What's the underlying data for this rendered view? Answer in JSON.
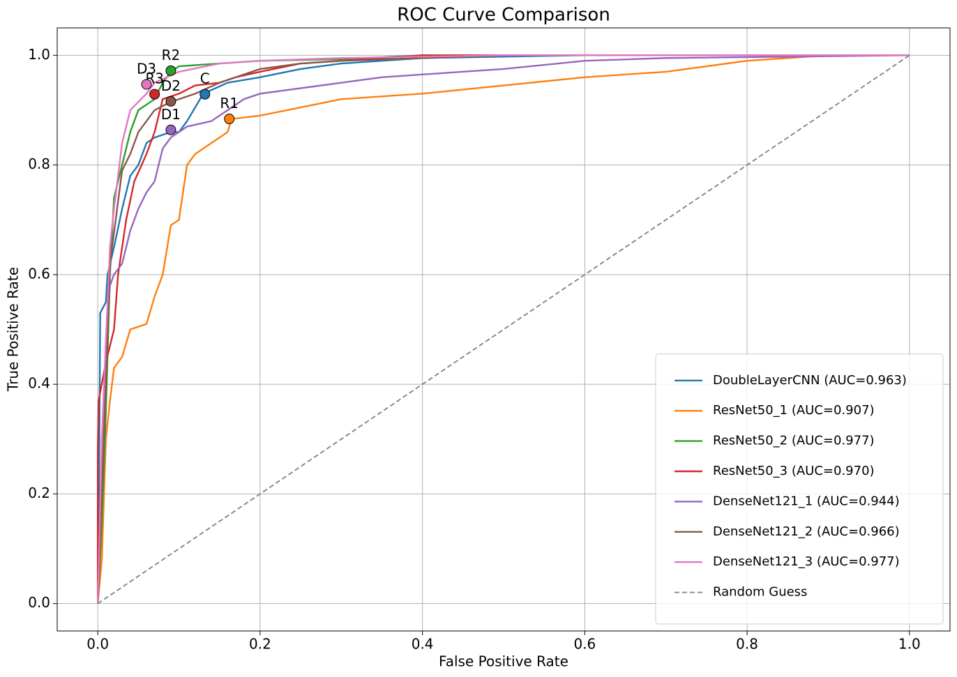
{
  "chart_data": {
    "type": "line",
    "title": "ROC Curve Comparison",
    "xlabel": "False Positive Rate",
    "ylabel": "True Positive Rate",
    "xlim": [
      -0.05,
      1.05
    ],
    "ylim": [
      -0.05,
      1.05
    ],
    "xticks": [
      {
        "value": 0,
        "label": "0.0"
      },
      0.2,
      0.4,
      0.6,
      0.8,
      {
        "value": 1,
        "label": "1.0"
      }
    ],
    "yticks": [
      {
        "value": 0,
        "label": "0.0"
      },
      0.2,
      0.4,
      0.6,
      0.8,
      {
        "value": 1,
        "label": "1.0"
      }
    ],
    "grid": true,
    "legend": "lower right",
    "series": [
      {
        "name": "DoubleLayerCNN (AUC=0.963)",
        "color": "#1f77b4",
        "x": [
          0,
          0.002,
          0.003,
          0.01,
          0.012,
          0.02,
          0.03,
          0.04,
          0.05,
          0.06,
          0.07,
          0.09,
          0.1,
          0.11,
          0.13,
          0.16,
          0.2,
          0.25,
          0.3,
          0.4,
          0.6,
          1
        ],
        "values": [
          0,
          0.3,
          0.53,
          0.55,
          0.6,
          0.65,
          0.72,
          0.78,
          0.8,
          0.84,
          0.85,
          0.86,
          0.86,
          0.88,
          0.93,
          0.95,
          0.96,
          0.975,
          0.985,
          0.995,
          1,
          1
        ]
      },
      {
        "name": "ResNet50_1 (AUC=0.907)",
        "color": "#ff7f0e",
        "x": [
          0,
          0.005,
          0.01,
          0.015,
          0.02,
          0.03,
          0.04,
          0.06,
          0.07,
          0.08,
          0.09,
          0.1,
          0.11,
          0.12,
          0.14,
          0.16,
          0.165,
          0.2,
          0.25,
          0.3,
          0.4,
          0.5,
          0.6,
          0.7,
          0.75,
          0.8,
          0.9,
          1
        ],
        "values": [
          0,
          0.08,
          0.3,
          0.37,
          0.43,
          0.45,
          0.5,
          0.51,
          0.56,
          0.6,
          0.69,
          0.7,
          0.8,
          0.82,
          0.84,
          0.86,
          0.884,
          0.89,
          0.905,
          0.92,
          0.93,
          0.945,
          0.96,
          0.97,
          0.98,
          0.99,
          1,
          1
        ]
      },
      {
        "name": "ResNet50_2 (AUC=0.977)",
        "color": "#2ca02c",
        "x": [
          0,
          0.005,
          0.01,
          0.015,
          0.02,
          0.03,
          0.04,
          0.05,
          0.07,
          0.08,
          0.09,
          0.1,
          0.15,
          0.2,
          0.3,
          0.4,
          1
        ],
        "values": [
          0,
          0.15,
          0.35,
          0.6,
          0.74,
          0.8,
          0.86,
          0.9,
          0.92,
          0.95,
          0.97,
          0.98,
          0.985,
          0.99,
          0.993,
          1,
          1
        ]
      },
      {
        "name": "ResNet50_3 (AUC=0.970)",
        "color": "#d62728",
        "x": [
          0,
          0,
          0.001,
          0.01,
          0.02,
          0.025,
          0.035,
          0.045,
          0.06,
          0.07,
          0.08,
          0.1,
          0.12,
          0.15,
          0.17,
          0.2,
          0.25,
          0.3,
          0.4,
          1
        ],
        "values": [
          0,
          0.28,
          0.37,
          0.44,
          0.5,
          0.6,
          0.7,
          0.77,
          0.82,
          0.86,
          0.92,
          0.93,
          0.945,
          0.95,
          0.96,
          0.97,
          0.985,
          0.99,
          1,
          1
        ]
      },
      {
        "name": "DenseNet121_1 (AUC=0.944)",
        "color": "#9467bd",
        "x": [
          0,
          0.005,
          0.01,
          0.015,
          0.02,
          0.03,
          0.04,
          0.05,
          0.06,
          0.07,
          0.075,
          0.08,
          0.09,
          0.11,
          0.14,
          0.16,
          0.18,
          0.2,
          0.25,
          0.3,
          0.35,
          0.4,
          0.5,
          0.6,
          0.7,
          1
        ],
        "values": [
          0,
          0.25,
          0.48,
          0.58,
          0.6,
          0.62,
          0.68,
          0.72,
          0.75,
          0.77,
          0.8,
          0.83,
          0.85,
          0.87,
          0.88,
          0.9,
          0.92,
          0.93,
          0.94,
          0.95,
          0.96,
          0.965,
          0.975,
          0.99,
          0.995,
          1
        ]
      },
      {
        "name": "DenseNet121_2 (AUC=0.966)",
        "color": "#8c564b",
        "x": [
          0,
          0.005,
          0.01,
          0.015,
          0.03,
          0.04,
          0.05,
          0.06,
          0.07,
          0.09,
          0.12,
          0.15,
          0.2,
          0.25,
          0.3,
          0.4,
          0.5,
          1
        ],
        "values": [
          0,
          0.2,
          0.4,
          0.62,
          0.79,
          0.82,
          0.86,
          0.88,
          0.9,
          0.915,
          0.93,
          0.95,
          0.975,
          0.985,
          0.99,
          0.995,
          1,
          1
        ]
      },
      {
        "name": "DenseNet121_3 (AUC=0.977)",
        "color": "#e377c2",
        "x": [
          0,
          0.005,
          0.01,
          0.015,
          0.02,
          0.03,
          0.035,
          0.04,
          0.06,
          0.07,
          0.1,
          0.15,
          0.2,
          0.3,
          0.5,
          1
        ],
        "values": [
          0,
          0.3,
          0.48,
          0.65,
          0.72,
          0.84,
          0.87,
          0.9,
          0.93,
          0.95,
          0.97,
          0.985,
          0.99,
          0.995,
          1,
          1
        ]
      },
      {
        "name": "Random Guess",
        "color": "#808080",
        "dashed": true,
        "x": [
          0,
          1
        ],
        "values": [
          0,
          1
        ]
      }
    ],
    "points": [
      {
        "label": "C",
        "x": 0.132,
        "y": 0.929,
        "color": "#1f77b4"
      },
      {
        "label": "R1",
        "x": 0.162,
        "y": 0.884,
        "color": "#ff7f0e"
      },
      {
        "label": "R2",
        "x": 0.09,
        "y": 0.972,
        "color": "#2ca02c"
      },
      {
        "label": "R3",
        "x": 0.07,
        "y": 0.929,
        "color": "#d62728"
      },
      {
        "label": "D1",
        "x": 0.09,
        "y": 0.864,
        "color": "#9467bd"
      },
      {
        "label": "D2",
        "x": 0.09,
        "y": 0.916,
        "color": "#8c564b"
      },
      {
        "label": "D3",
        "x": 0.06,
        "y": 0.947,
        "color": "#e377c2"
      }
    ]
  }
}
